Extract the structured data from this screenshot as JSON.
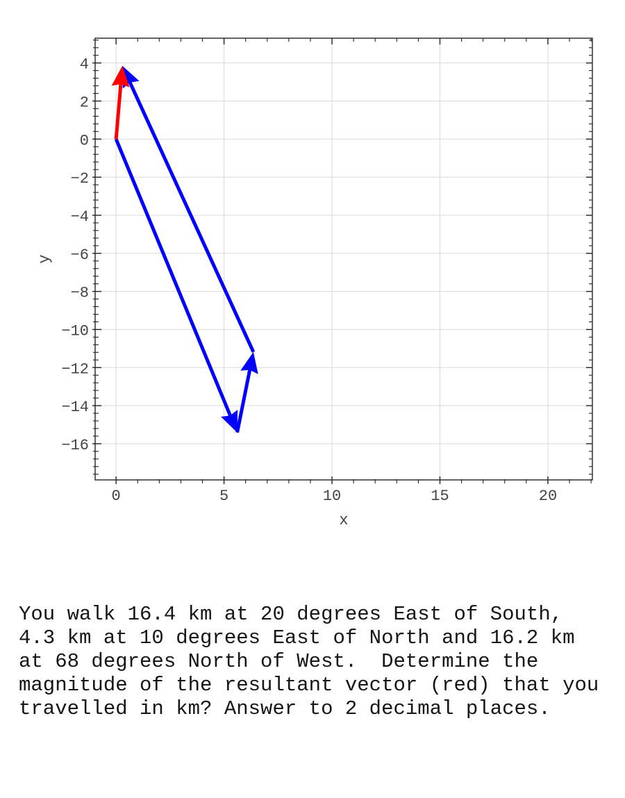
{
  "page": {
    "background": "#ffffff"
  },
  "chart_data": {
    "type": "line",
    "subtype": "vector-arrows",
    "title": "",
    "xlabel": "x",
    "ylabel": "y",
    "xlim": [
      -0.97,
      22.06
    ],
    "ylim": [
      -17.9,
      5.3
    ],
    "grid": true,
    "grid_color": "#d8d8d8",
    "axis_color": "#222222",
    "tick_label_color": "#444444",
    "x_ticks": [
      {
        "v": 0,
        "label": "0"
      },
      {
        "v": 5,
        "label": "5"
      },
      {
        "v": 10,
        "label": "10"
      },
      {
        "v": 15,
        "label": "15"
      },
      {
        "v": 20,
        "label": "20"
      }
    ],
    "y_ticks": [
      {
        "v": 4,
        "label": "4"
      },
      {
        "v": 2,
        "label": "2"
      },
      {
        "v": 0,
        "label": "0"
      },
      {
        "v": -2,
        "label": "−2"
      },
      {
        "v": -4,
        "label": "−4"
      },
      {
        "v": -6,
        "label": "−6"
      },
      {
        "v": -8,
        "label": "−8"
      },
      {
        "v": -10,
        "label": "−10"
      },
      {
        "v": -12,
        "label": "−12"
      },
      {
        "v": -14,
        "label": "−14"
      },
      {
        "v": -16,
        "label": "−16"
      }
    ],
    "x_minor_step": 1,
    "y_minor_step": 0.4,
    "vectors": [
      {
        "name": "leg-1-16.4km-20deg-east-of-south",
        "color": "#0000ff",
        "from": [
          0,
          0
        ],
        "to": [
          5.61,
          -15.41
        ]
      },
      {
        "name": "leg-2-4.3km-10deg-east-of-north",
        "color": "#0000ff",
        "from": [
          5.61,
          -15.41
        ],
        "to": [
          6.36,
          -11.18
        ]
      },
      {
        "name": "leg-3-16.2km-68deg-north-of-west",
        "color": "#0000ff",
        "from": [
          6.36,
          -11.18
        ],
        "to": [
          0.29,
          3.85
        ]
      },
      {
        "name": "resultant-vector",
        "color": "#ff0000",
        "from": [
          0,
          0
        ],
        "to": [
          0.29,
          3.85
        ]
      }
    ]
  },
  "question": {
    "lines": [
      "You walk 16.4 km at 20 degrees East of South,",
      "4.3 km at 10 degrees East of North and 16.2 km",
      "at 68 degrees North of West.  Determine the",
      "magnitude of the resultant vector (red) that you",
      "travelled in km? Answer to 2 decimal places."
    ]
  }
}
